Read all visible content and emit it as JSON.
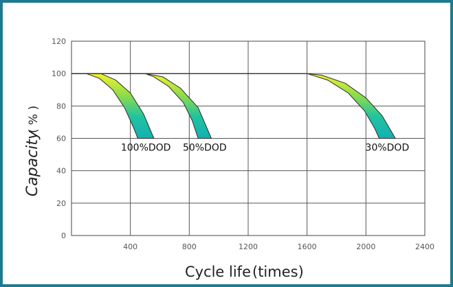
{
  "frame_color": "#1c7a91",
  "chart_data": {
    "type": "line",
    "xlabel": "Cycle life",
    "xlabel_unit": "(times)",
    "ylabel": "Capacity",
    "ylabel_unit": "( % )",
    "xlim": [
      0,
      2400
    ],
    "ylim": [
      0,
      120
    ],
    "x_ticks": [
      400,
      800,
      1200,
      1600,
      2000,
      2400
    ],
    "y_ticks": [
      0,
      20,
      40,
      60,
      80,
      100,
      120
    ],
    "grid": true,
    "gradient_colors": [
      "#f2f22e",
      "#8fdc4a",
      "#21c3a0",
      "#14b0b4"
    ],
    "series": [
      {
        "name": "100%DOD",
        "upper": [
          [
            0,
            100
          ],
          [
            200,
            100
          ],
          [
            300,
            96
          ],
          [
            400,
            88
          ],
          [
            490,
            75
          ],
          [
            560,
            60
          ]
        ],
        "lower": [
          [
            0,
            100
          ],
          [
            100,
            100
          ],
          [
            190,
            97
          ],
          [
            280,
            90
          ],
          [
            360,
            79
          ],
          [
            420,
            67
          ],
          [
            450,
            60
          ]
        ]
      },
      {
        "name": "50%DOD",
        "upper": [
          [
            0,
            100
          ],
          [
            500,
            100
          ],
          [
            620,
            98
          ],
          [
            740,
            91
          ],
          [
            860,
            79
          ],
          [
            950,
            60
          ]
        ],
        "lower": [
          [
            0,
            100
          ],
          [
            500,
            100
          ],
          [
            560,
            98
          ],
          [
            660,
            92
          ],
          [
            760,
            82
          ],
          [
            820,
            71
          ],
          [
            860,
            60
          ]
        ]
      },
      {
        "name": "30%DOD",
        "upper": [
          [
            0,
            100
          ],
          [
            1600,
            100
          ],
          [
            1700,
            99
          ],
          [
            1860,
            94
          ],
          [
            2000,
            85
          ],
          [
            2110,
            74
          ],
          [
            2200,
            60
          ]
        ],
        "lower": [
          [
            0,
            100
          ],
          [
            1600,
            100
          ],
          [
            1740,
            96
          ],
          [
            1880,
            88
          ],
          [
            1990,
            77
          ],
          [
            2060,
            66
          ],
          [
            2090,
            60
          ]
        ]
      }
    ]
  }
}
